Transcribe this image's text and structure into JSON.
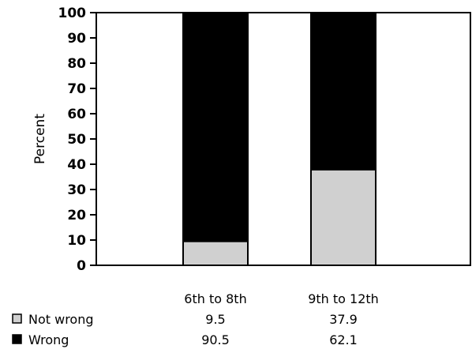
{
  "chart_data": {
    "type": "bar",
    "stacked": true,
    "categories": [
      "6th to 8th",
      "9th to 12th"
    ],
    "series": [
      {
        "name": "Not wrong",
        "values": [
          9.5,
          37.9
        ],
        "color": "#d0d0d0"
      },
      {
        "name": "Wrong",
        "values": [
          90.5,
          62.1
        ],
        "color": "#000000"
      }
    ],
    "table_values": [
      [
        "9.5",
        "37.9"
      ],
      [
        "90.5",
        "62.1"
      ]
    ],
    "title": "",
    "xlabel": "",
    "ylabel": "Percent",
    "ylim": [
      0,
      100
    ],
    "yticks": [
      "0",
      "10",
      "20",
      "30",
      "40",
      "50",
      "60",
      "70",
      "80",
      "90",
      "100"
    ],
    "grid": false,
    "legend": "bottom-left"
  }
}
